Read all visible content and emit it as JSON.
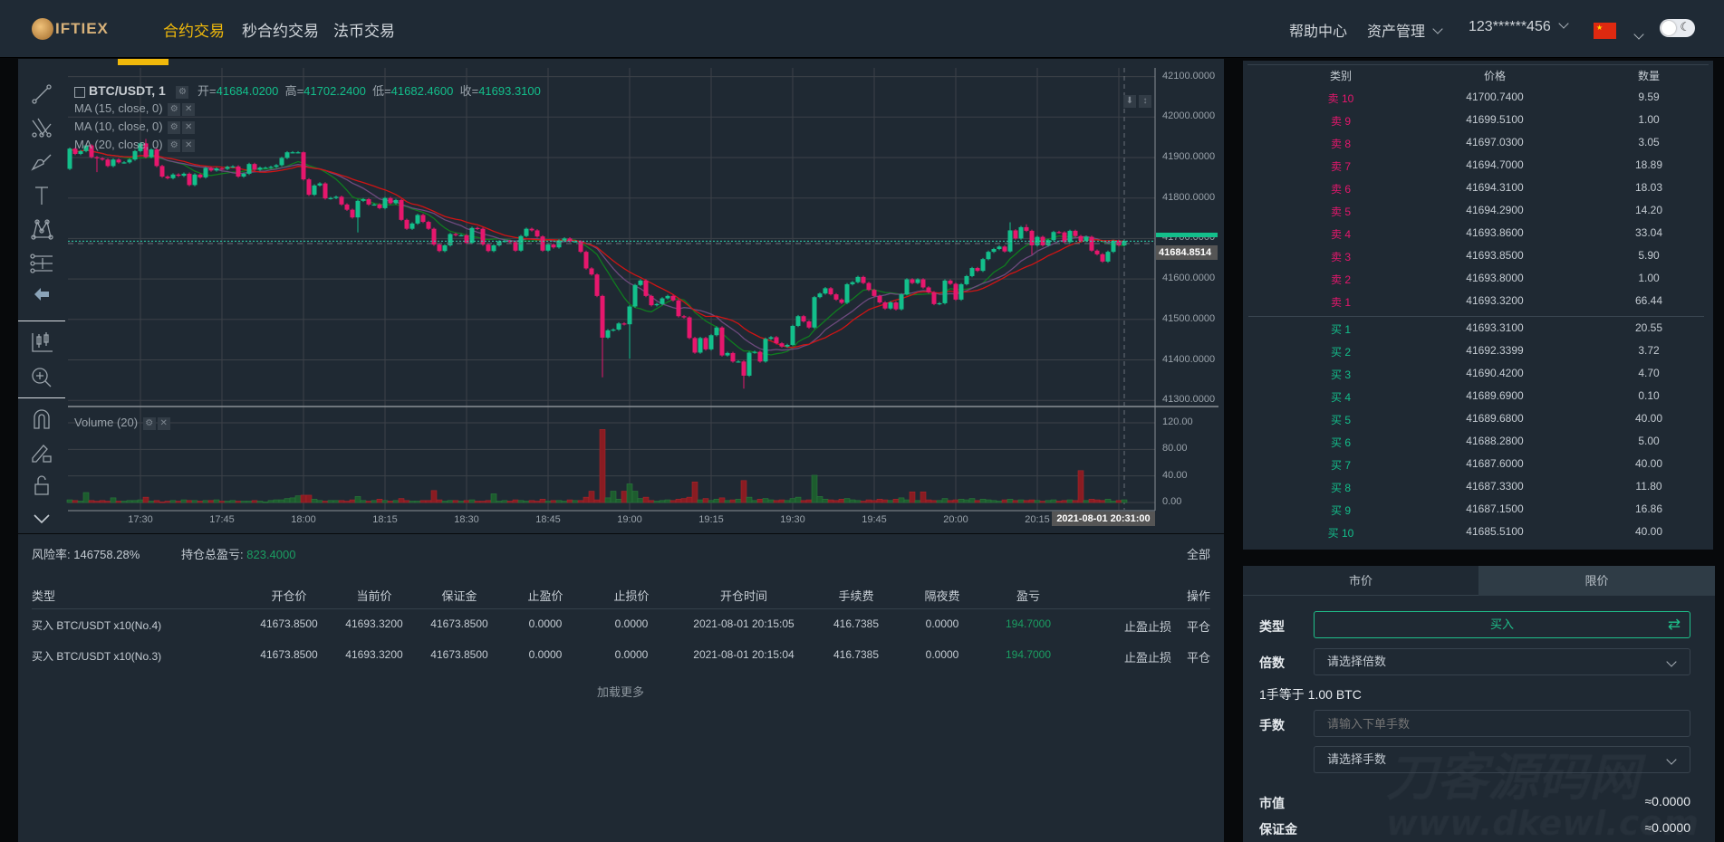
{
  "header": {
    "logo_text": "IFTIEX",
    "nav": [
      {
        "label": "合约交易",
        "active": true
      },
      {
        "label": "秒合约交易"
      },
      {
        "label": "法币交易"
      }
    ],
    "help": "帮助中心",
    "assets": "资产管理",
    "user": "123******456",
    "language_flag": "china-flag-icon",
    "theme_toggle": "dark-mode-toggle"
  },
  "legend": {
    "symbol": "BTC/USDT, 1",
    "open_label": "开=",
    "open": "41684.0200",
    "high_label": "高=",
    "high": "41702.2400",
    "low_label": "低=",
    "low": "41682.4600",
    "close_label": "收=",
    "close": "41693.3100",
    "ma": [
      "MA (15, close, 0)",
      "MA (10, close, 0)",
      "MA (20, close, 0)"
    ],
    "volume": "Volume (20)"
  },
  "price_tag": "41684.8514",
  "crosshair_time": "2021-08-01 20:31:00",
  "colors": {
    "up": "#13bf8b",
    "down": "#e6176d",
    "vol_up": "#1d5c2e",
    "vol_down": "#8a1c22",
    "ma10": "#0f7d1f",
    "ma15": "#6e4a7e",
    "ma20": "#d11414",
    "accent": "#f0b90b"
  },
  "chart_data": {
    "type": "candlestick",
    "interval": "1 min",
    "start_time": "17:17",
    "first_open": 41872,
    "closes": [
      41922,
      41909,
      41916,
      41930,
      41901,
      41898,
      41895,
      41879,
      41895,
      41888,
      41888,
      41895,
      41916,
      41935,
      41901,
      41920,
      41879,
      41853,
      41849,
      41858,
      41855,
      41860,
      41832,
      41858,
      41851,
      41874,
      41868,
      41873,
      41872,
      41877,
      41878,
      41853,
      41860,
      41884,
      41870,
      41875,
      41875,
      41877,
      41881,
      41899,
      41913,
      41913,
      41913,
      41846,
      41808,
      41831,
      41836,
      41799,
      41800,
      41803,
      41784,
      41771,
      41752,
      41793,
      41797,
      41784,
      41784,
      41775,
      41800,
      41787,
      41795,
      41746,
      41724,
      41737,
      41758,
      41741,
      41724,
      41685,
      41669,
      41683,
      41711,
      41708,
      41708,
      41689,
      41726,
      41724,
      41685,
      41669,
      41683,
      41693,
      41694,
      41691,
      41670,
      41706,
      41724,
      41720,
      41705,
      41670,
      41685,
      41678,
      41695,
      41700,
      41693,
      41693,
      41667,
      41626,
      41611,
      41558,
      41455,
      41473,
      41475,
      41490,
      41488,
      41532,
      41585,
      41596,
      41558,
      41535,
      41538,
      41552,
      41558,
      41547,
      41508,
      41505,
      41454,
      41418,
      41454,
      41426,
      41461,
      41480,
      41411,
      41417,
      41396,
      41396,
      41361,
      41418,
      41420,
      41396,
      41452,
      41456,
      41441,
      41433,
      41437,
      41484,
      41508,
      41495,
      41480,
      41555,
      41564,
      41577,
      41562,
      41549,
      41541,
      41587,
      41592,
      41605,
      41590,
      41573,
      41558,
      41542,
      41527,
      41542,
      41525,
      41562,
      41599,
      41590,
      41599,
      41579,
      41567,
      41538,
      41540,
      41596,
      41588,
      41549,
      41587,
      41607,
      41627,
      41620,
      41649,
      41667,
      41674,
      41680,
      41668,
      41720,
      41700,
      41728,
      41719,
      41683,
      41704,
      41683,
      41696,
      41716,
      41715,
      41691,
      41719,
      41706,
      41694,
      41704,
      41670,
      41661,
      41643,
      41667,
      41694,
      41683,
      41694
    ],
    "notable_highs": {
      "14": 41946,
      "43": 41915,
      "173": 41740,
      "176": 41735
    },
    "notable_lows": {
      "5": 41864,
      "53": 41715,
      "98": 41357,
      "103": 41403,
      "124": 41329,
      "177": 41660
    },
    "volumes": [
      4,
      3,
      2,
      15,
      3,
      2,
      3,
      2,
      7,
      2,
      2,
      3,
      3,
      4,
      8,
      2,
      3,
      1,
      2,
      3,
      2,
      4,
      3,
      3,
      2,
      3,
      3,
      4,
      2,
      2,
      3,
      2,
      2,
      2,
      3,
      2,
      1,
      3,
      4,
      4,
      6,
      7,
      10,
      11,
      11,
      5,
      3,
      2,
      3,
      3,
      3,
      2,
      4,
      9,
      3,
      2,
      3,
      5,
      3,
      2,
      3,
      6,
      3,
      2,
      2,
      3,
      3,
      18,
      4,
      2,
      3,
      3,
      2,
      3,
      4,
      2,
      2,
      3,
      13,
      2,
      3,
      2,
      4,
      3,
      2,
      3,
      2,
      5,
      2,
      3,
      3,
      2,
      4,
      3,
      3,
      8,
      17,
      4,
      110,
      7,
      17,
      5,
      17,
      28,
      17,
      6,
      8,
      3,
      2,
      3,
      4,
      3,
      5,
      6,
      8,
      31,
      4,
      6,
      3,
      5,
      7,
      3,
      4,
      5,
      33,
      8,
      3,
      5,
      6,
      4,
      3,
      4,
      3,
      6,
      8,
      3,
      4,
      41,
      9,
      5,
      4,
      3,
      5,
      6,
      4,
      3,
      2,
      4,
      3,
      5,
      4,
      3,
      5,
      7,
      4,
      16,
      3,
      16,
      4,
      3,
      3,
      6,
      3,
      4,
      5,
      4,
      6,
      3,
      5,
      4,
      3,
      2,
      4,
      5,
      3,
      4,
      3,
      4,
      3,
      2,
      3,
      4,
      2,
      3,
      4,
      3,
      48,
      3,
      5,
      4,
      3,
      5,
      2,
      3,
      4
    ],
    "moving_averages": [
      10,
      15,
      20
    ],
    "price_axis": {
      "ticks": [
        "42100.0000",
        "42000.0000",
        "41900.0000",
        "41800.0000",
        "41700.0000",
        "41600.0000",
        "41500.0000",
        "41400.0000",
        "41300.0000"
      ],
      "range": [
        41300,
        42100
      ]
    },
    "volume_axis": {
      "ticks": [
        "120.00",
        "80.00",
        "40.00",
        "0.00"
      ],
      "range": [
        0,
        120
      ]
    },
    "time_ticks": [
      "17:30",
      "17:45",
      "18:00",
      "18:15",
      "18:30",
      "18:45",
      "19:00",
      "19:15",
      "19:30",
      "19:45",
      "20:00",
      "20:15"
    ],
    "current_price": 41693.31
  },
  "positions": {
    "risk_label": "风险率:",
    "risk_value": "146758.28%",
    "pnl_label": "持仓总盈亏:",
    "pnl_value": "823.4000",
    "all": "全部",
    "columns": [
      "类型",
      "开仓价",
      "当前价",
      "保证金",
      "止盈价",
      "止损价",
      "开仓时间",
      "手续费",
      "隔夜费",
      "盈亏",
      "操作"
    ],
    "rows": [
      {
        "type": "买入 BTC/USDT x10(No.4)",
        "open": "41673.8500",
        "current": "41693.3200",
        "margin": "41673.8500",
        "tp": "0.0000",
        "sl": "0.0000",
        "time": "2021-08-01 20:15:05",
        "fee": "416.7385",
        "overnight": "0.0000",
        "pnl": "194.7000",
        "tpsl": "止盈止损",
        "close": "平仓"
      },
      {
        "type": "买入 BTC/USDT x10(No.3)",
        "open": "41673.8500",
        "current": "41693.3200",
        "margin": "41673.8500",
        "tp": "0.0000",
        "sl": "0.0000",
        "time": "2021-08-01 20:15:04",
        "fee": "416.7385",
        "overnight": "0.0000",
        "pnl": "194.7000",
        "tpsl": "止盈止损",
        "close": "平仓"
      }
    ],
    "load_more": "加载更多"
  },
  "orderbook": {
    "headers": [
      "类别",
      "价格",
      "数量"
    ],
    "asks": [
      [
        "卖 10",
        "41700.7400",
        "9.59"
      ],
      [
        "卖 9",
        "41699.5100",
        "1.00"
      ],
      [
        "卖 8",
        "41697.0300",
        "3.05"
      ],
      [
        "卖 7",
        "41694.7000",
        "18.89"
      ],
      [
        "卖 6",
        "41694.3100",
        "18.03"
      ],
      [
        "卖 5",
        "41694.2900",
        "14.20"
      ],
      [
        "卖 4",
        "41693.8600",
        "33.04"
      ],
      [
        "卖 3",
        "41693.8500",
        "5.90"
      ],
      [
        "卖 2",
        "41693.8000",
        "1.00"
      ],
      [
        "卖 1",
        "41693.3200",
        "66.44"
      ]
    ],
    "bids": [
      [
        "买 1",
        "41693.3100",
        "20.55"
      ],
      [
        "买 2",
        "41692.3399",
        "3.72"
      ],
      [
        "买 3",
        "41690.4200",
        "4.70"
      ],
      [
        "买 4",
        "41689.6900",
        "0.10"
      ],
      [
        "买 5",
        "41689.6800",
        "40.00"
      ],
      [
        "买 6",
        "41688.2800",
        "5.00"
      ],
      [
        "买 7",
        "41687.6000",
        "40.00"
      ],
      [
        "买 8",
        "41687.3300",
        "11.80"
      ],
      [
        "买 9",
        "41687.1500",
        "16.86"
      ],
      [
        "买 10",
        "41685.5100",
        "40.00"
      ]
    ]
  },
  "order_form": {
    "tabs": [
      "市价",
      "限价"
    ],
    "type_label": "类型",
    "type_value": "买入",
    "leverage_label": "倍数",
    "leverage_placeholder": "请选择倍数",
    "lot_info": "1手等于 1.00 BTC",
    "lots_label": "手数",
    "lots_placeholder": "请输入下单手数",
    "lots_select": "请选择手数",
    "market_value_label": "市值",
    "market_value": "≈0.0000",
    "margin_label": "保证金",
    "margin_value": "≈0.0000"
  },
  "watermark": {
    "line1": "刀客源码网",
    "line2": "www.dkewl.com"
  }
}
